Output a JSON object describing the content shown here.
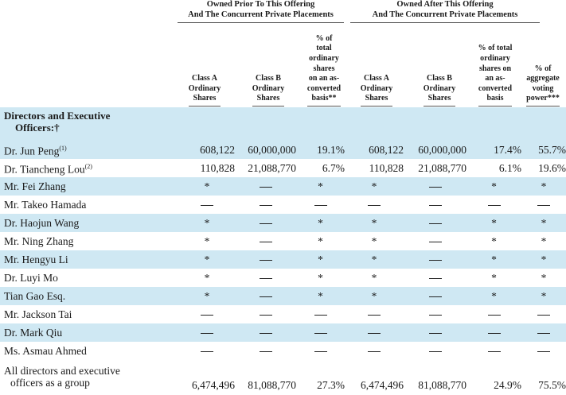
{
  "header": {
    "prior_group": "Owned Prior To This Offering\nAnd The Concurrent Private Placements",
    "after_group": "Owned After This Offering\nAnd The Concurrent Private Placements",
    "columns": [
      "Class A\nOrdinary\nShares",
      "Class B\nOrdinary\nShares",
      "% of\ntotal\nordinary\nshares\non an as-\nconverted\nbasis**",
      "Class A\nOrdinary\nShares",
      "Class B\nOrdinary\nShares",
      "% of total\nordinary\nshares on\nan as-\nconverted\nbasis",
      "% of\naggregate\nvoting\npower***"
    ]
  },
  "section": {
    "line1": "Directors and Executive",
    "line2": "Officers:†"
  },
  "rows": [
    {
      "name": "Dr. Jun Peng",
      "note": "(1)",
      "cells": [
        "608,122",
        "60,000,000",
        "19.1%",
        "608,122",
        "60,000,000",
        "17.4%",
        "55.7%"
      ]
    },
    {
      "name": "Dr. Tiancheng Lou",
      "note": "(2)",
      "cells": [
        "110,828",
        "21,088,770",
        "6.7%",
        "110,828",
        "21,088,770",
        "6.1%",
        "19.6%"
      ]
    },
    {
      "name": "Mr. Fei Zhang",
      "note": "",
      "cells": [
        "*",
        "—",
        "*",
        "*",
        "—",
        "*",
        "*"
      ]
    },
    {
      "name": "Mr. Takeo Hamada",
      "note": "",
      "cells": [
        "—",
        "—",
        "—",
        "—",
        "—",
        "—",
        "—"
      ]
    },
    {
      "name": "Dr. Haojun Wang",
      "note": "",
      "cells": [
        "*",
        "—",
        "*",
        "*",
        "—",
        "*",
        "*"
      ]
    },
    {
      "name": "Mr. Ning Zhang",
      "note": "",
      "cells": [
        "*",
        "—",
        "*",
        "*",
        "—",
        "*",
        "*"
      ]
    },
    {
      "name": "Mr. Hengyu Li",
      "note": "",
      "cells": [
        "*",
        "—",
        "*",
        "*",
        "—",
        "*",
        "*"
      ]
    },
    {
      "name": "Dr. Luyi Mo",
      "note": "",
      "cells": [
        "*",
        "—",
        "*",
        "*",
        "—",
        "*",
        "*"
      ]
    },
    {
      "name": "Tian Gao Esq.",
      "note": "",
      "cells": [
        "*",
        "—",
        "*",
        "*",
        "—",
        "*",
        "*"
      ]
    },
    {
      "name": "Mr. Jackson Tai",
      "note": "",
      "cells": [
        "—",
        "—",
        "—",
        "—",
        "—",
        "—",
        "—"
      ]
    },
    {
      "name": "Dr. Mark Qiu",
      "note": "",
      "cells": [
        "—",
        "—",
        "—",
        "—",
        "—",
        "—",
        "—"
      ]
    },
    {
      "name": "Ms. Asmau Ahmed",
      "note": "",
      "cells": [
        "—",
        "—",
        "—",
        "—",
        "—",
        "—",
        "—"
      ]
    }
  ],
  "total": {
    "line1": "All directors and executive",
    "line2": "officers as a group",
    "cells": [
      "6,474,496",
      "81,088,770",
      "27.3%",
      "6,474,496",
      "81,088,770",
      "24.9%",
      "75.5%"
    ]
  },
  "colors": {
    "shade": "#cfe8f3"
  }
}
